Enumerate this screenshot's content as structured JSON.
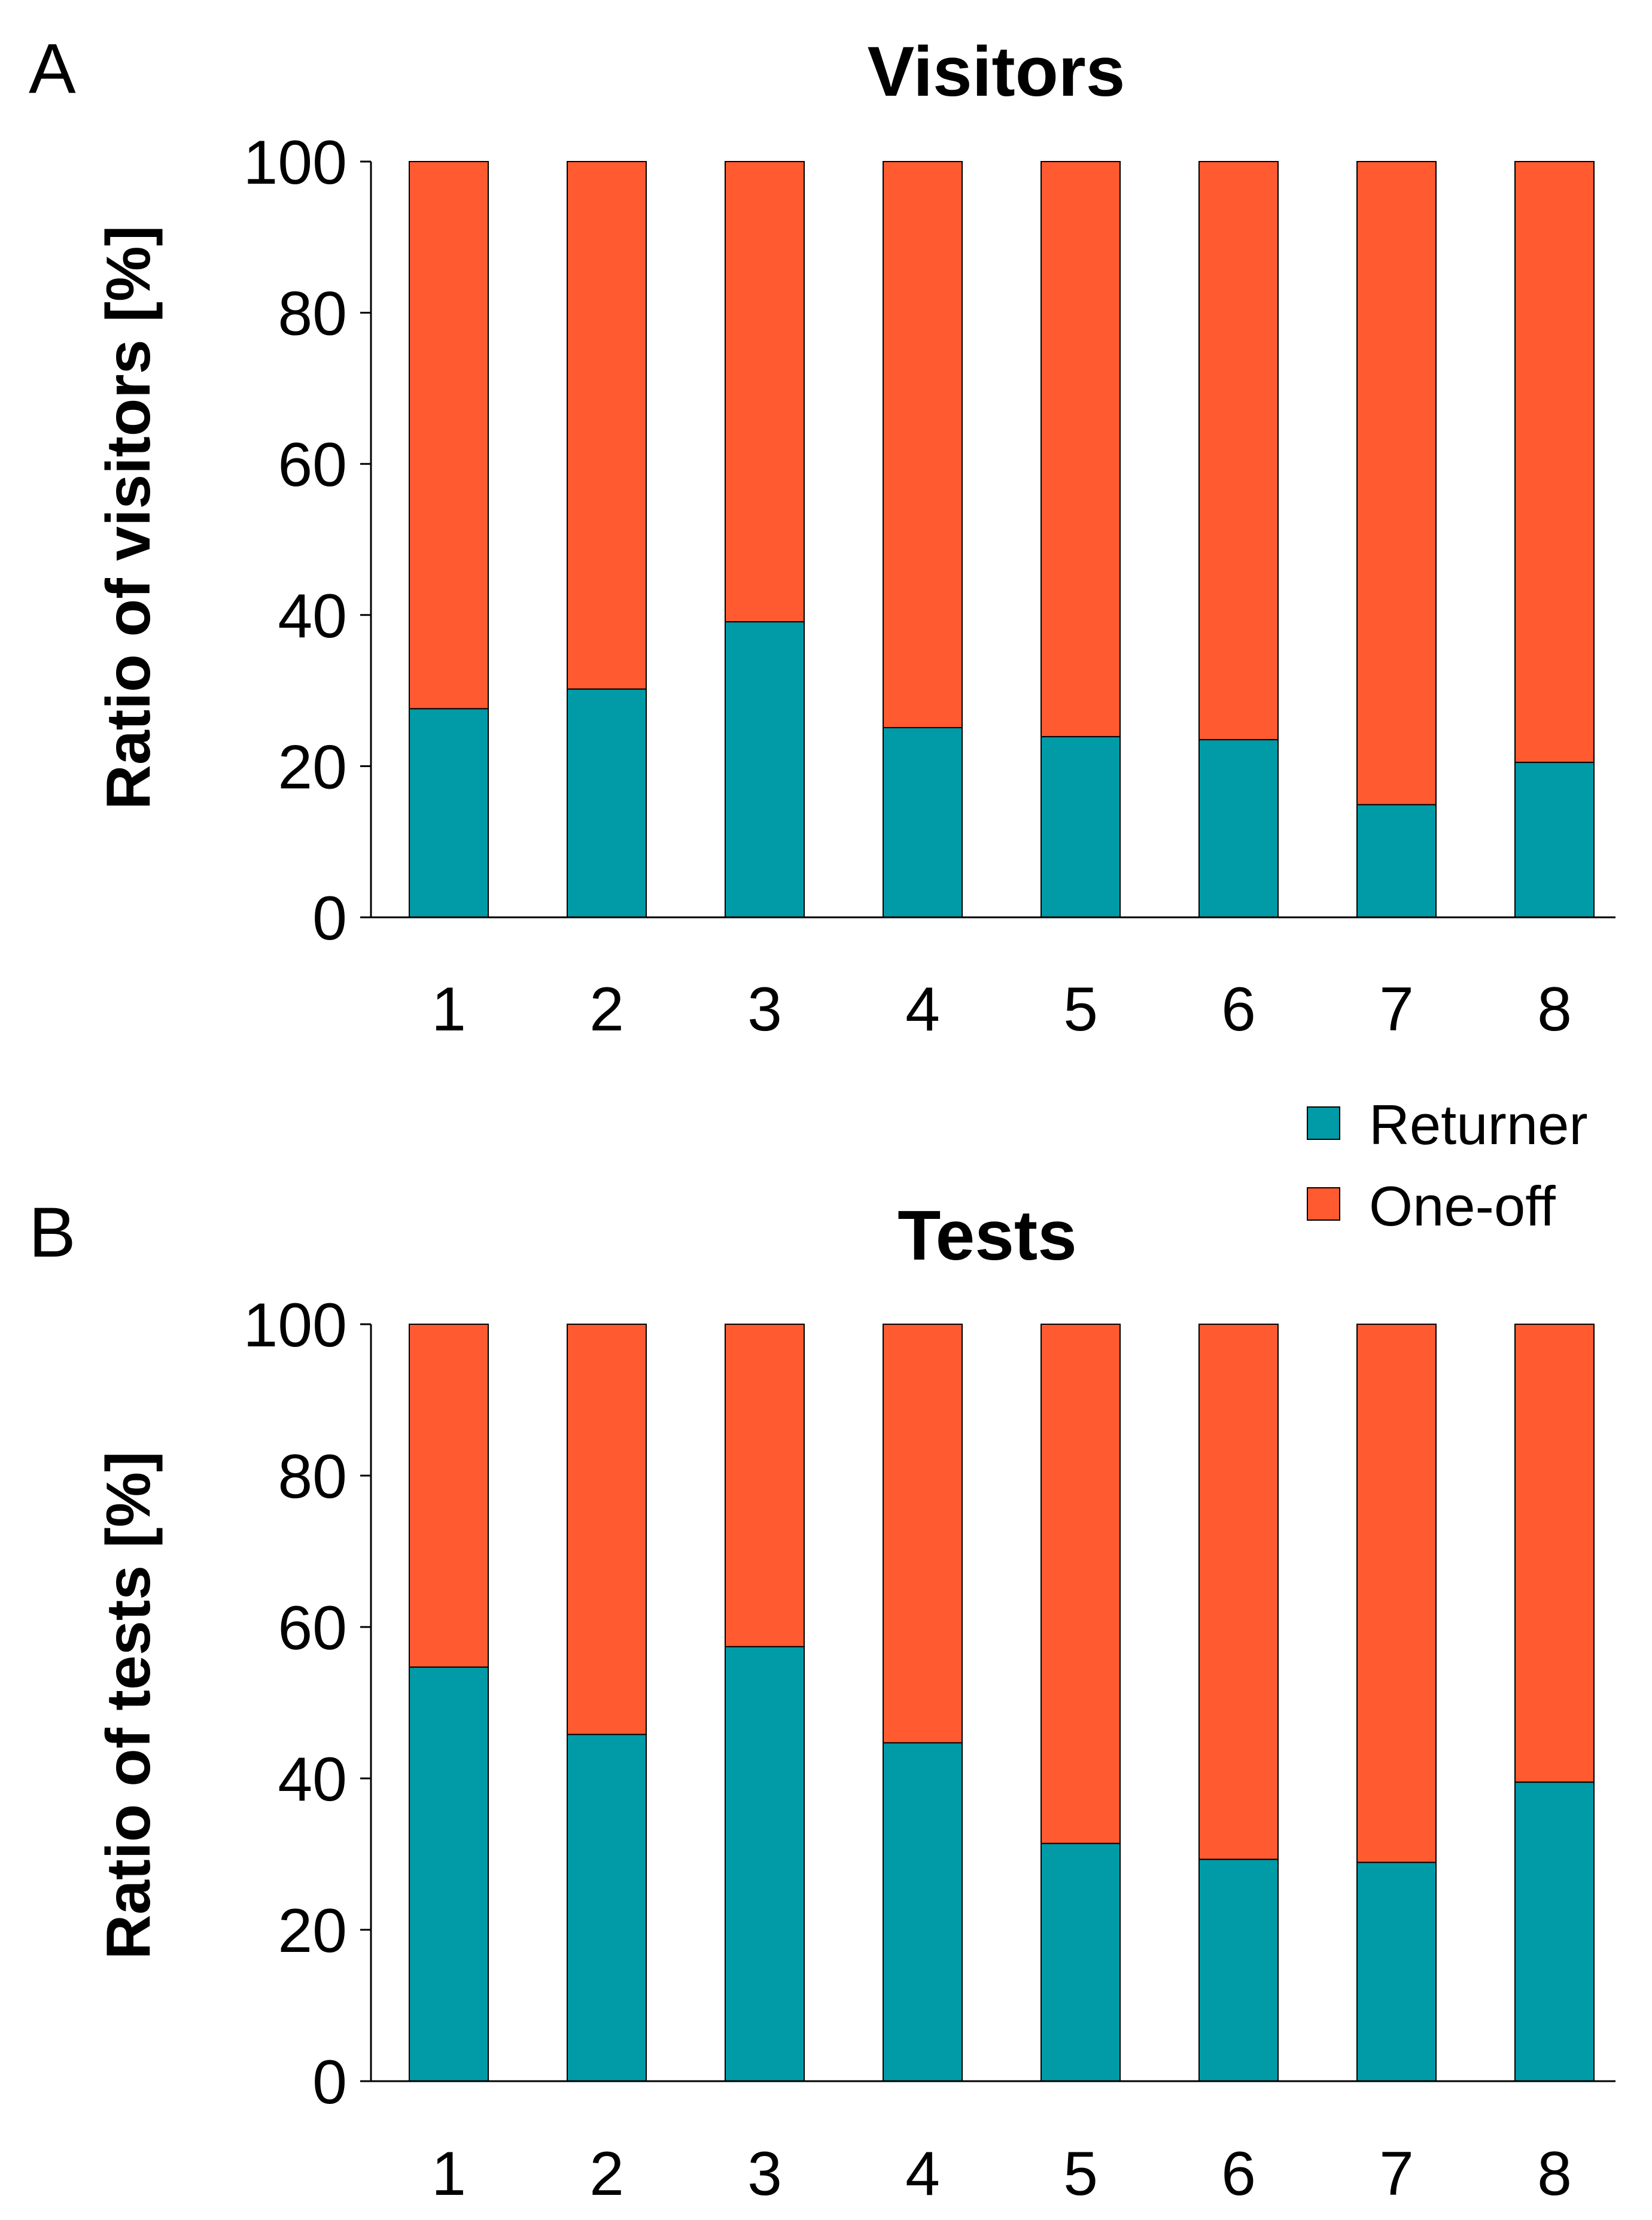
{
  "colors": {
    "returner": "#009ba6",
    "one_off": "#ff5a30",
    "axis": "#000000"
  },
  "legend": {
    "returner_label": "Returner",
    "one_off_label": "One-off"
  },
  "chart_data": [
    {
      "panel": "A",
      "type": "bar",
      "stacked": true,
      "title": "Visitors",
      "xlabel": "",
      "ylabel": "Ratio of visitors [%]",
      "ylim": [
        0,
        100
      ],
      "yticks": [
        "0",
        "20",
        "40",
        "60",
        "80",
        "100"
      ],
      "categories": [
        "1",
        "2",
        "3",
        "4",
        "5",
        "6",
        "7",
        "8"
      ],
      "series": [
        {
          "name": "Returner",
          "values": [
            27.6,
            30.2,
            39.1,
            25.1,
            23.9,
            23.5,
            14.9,
            20.5
          ]
        },
        {
          "name": "One-off",
          "values": [
            72.4,
            69.8,
            60.9,
            74.9,
            76.1,
            76.5,
            85.1,
            79.5
          ]
        }
      ]
    },
    {
      "panel": "B",
      "type": "bar",
      "stacked": true,
      "title": "Tests",
      "xlabel": "",
      "ylabel": "Ratio of tests [%]",
      "ylim": [
        0,
        100
      ],
      "yticks": [
        "0",
        "20",
        "40",
        "60",
        "80",
        "100"
      ],
      "categories": [
        "1",
        "2",
        "3",
        "4",
        "5",
        "6",
        "7",
        "8"
      ],
      "series": [
        {
          "name": "Returner",
          "values": [
            54.7,
            45.8,
            57.4,
            44.7,
            31.4,
            29.3,
            28.9,
            39.5
          ]
        },
        {
          "name": "One-off",
          "values": [
            45.3,
            54.2,
            42.6,
            55.3,
            68.6,
            70.7,
            71.1,
            60.5
          ]
        }
      ]
    }
  ]
}
